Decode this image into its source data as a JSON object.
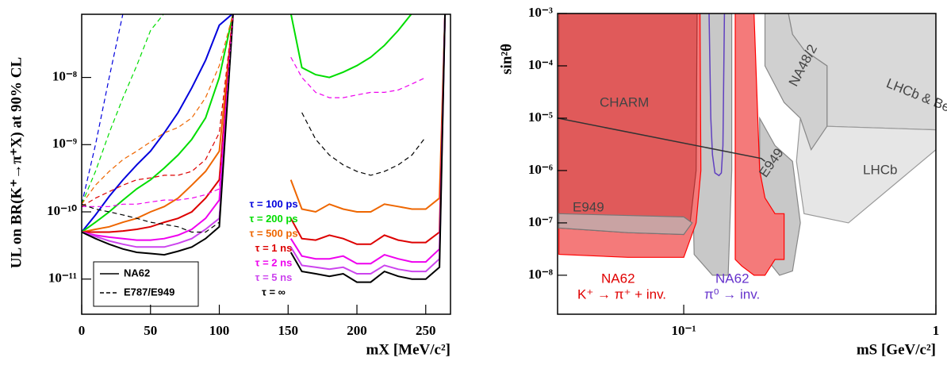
{
  "chart_data": [
    {
      "type": "line",
      "xlog": false,
      "ylog": true,
      "xlabel": "mX [MeV/c²]",
      "ylabel": "UL on BR(K⁺→π⁺X) at 90% CL",
      "xlim": [
        0,
        268
      ],
      "ylim": [
        3e-12,
        8.7e-08
      ],
      "xticks": [
        0,
        50,
        100,
        150,
        200,
        250
      ],
      "yticks": [
        {
          "value": 1e-11,
          "label": "10⁻¹¹"
        },
        {
          "value": 1e-10,
          "label": "10⁻¹⁰"
        },
        {
          "value": 1e-09,
          "label": "10⁻⁹"
        },
        {
          "value": 1e-08,
          "label": "10⁻⁸"
        }
      ],
      "legend": [
        {
          "label": "NA62",
          "dash": "solid"
        },
        {
          "label": "E787/E949",
          "dash": "dashed"
        }
      ],
      "x": [
        0,
        10,
        20,
        30,
        40,
        50,
        60,
        70,
        80,
        90,
        100,
        110,
        130,
        152,
        160,
        170,
        180,
        190,
        200,
        210,
        220,
        230,
        240,
        250,
        260,
        264
      ],
      "series": [
        {
          "name": "τ = 100 ps",
          "color": "#0000dd",
          "dash": "solid",
          "values": [
            5e-11,
            9e-11,
            1.7e-10,
            3e-10,
            5e-10,
            8e-10,
            1.5e-09,
            3e-09,
            7e-09,
            1.8e-08,
            6e-08,
            9e-08,
            null,
            null,
            null,
            null,
            null,
            null,
            null,
            null,
            null,
            null,
            null,
            null,
            null,
            null
          ]
        },
        {
          "name": "τ = 200 ps",
          "color": "#00dd00",
          "dash": "solid",
          "values": [
            5e-11,
            7e-11,
            1e-10,
            1.5e-10,
            2.2e-10,
            3e-10,
            4.5e-10,
            7e-10,
            1.2e-09,
            2.5e-09,
            1e-08,
            9e-08,
            null,
            9e-08,
            1.4e-08,
            1.1e-08,
            1e-08,
            1.2e-08,
            1.5e-08,
            2e-08,
            3e-08,
            5e-08,
            9e-08,
            9e-08,
            9e-08,
            9e-08
          ]
        },
        {
          "name": "τ = 500 ps",
          "color": "#ee6600",
          "dash": "solid",
          "values": [
            5e-11,
            5.5e-11,
            6e-11,
            7e-11,
            8e-11,
            1e-10,
            1.2e-10,
            1.6e-10,
            2.5e-10,
            4e-10,
            8e-10,
            9e-08,
            null,
            3e-10,
            1.1e-10,
            1e-10,
            1.3e-10,
            1.1e-10,
            1e-10,
            1e-10,
            1.3e-10,
            1.2e-10,
            1.1e-10,
            1.1e-10,
            1.6e-10,
            9e-08
          ]
        },
        {
          "name": "τ = 1 ns",
          "color": "#dd0000",
          "dash": "solid",
          "values": [
            5e-11,
            5e-11,
            5e-11,
            5.2e-11,
            5.5e-11,
            6e-11,
            7e-11,
            8e-11,
            1e-10,
            1.6e-10,
            3e-10,
            9e-08,
            null,
            8e-11,
            4e-11,
            3.8e-11,
            4.5e-11,
            4e-11,
            3.3e-11,
            3.3e-11,
            4.5e-11,
            3.8e-11,
            3.5e-11,
            3.5e-11,
            5e-11,
            9e-08
          ]
        },
        {
          "name": "τ = 2 ns",
          "color": "#ee00ee",
          "dash": "solid",
          "values": [
            5e-11,
            4.5e-11,
            4.2e-11,
            4e-11,
            3.8e-11,
            3.8e-11,
            4e-11,
            4.5e-11,
            5.5e-11,
            8e-11,
            1.5e-10,
            9e-08,
            null,
            4e-11,
            2.2e-11,
            2e-11,
            2e-11,
            2.2e-11,
            1.7e-11,
            1.7e-11,
            2.3e-11,
            2e-11,
            1.8e-11,
            1.8e-11,
            2.8e-11,
            9e-08
          ]
        },
        {
          "name": "τ = 5 ns",
          "color": "#cc44ee",
          "dash": "solid",
          "values": [
            5e-11,
            4.3e-11,
            3.7e-11,
            3.3e-11,
            3e-11,
            3e-11,
            3e-11,
            3.4e-11,
            4e-11,
            5.5e-11,
            8e-11,
            9e-08,
            null,
            3e-11,
            1.6e-11,
            1.5e-11,
            1.4e-11,
            1.5e-11,
            1.2e-11,
            1.2e-11,
            1.6e-11,
            1.4e-11,
            1.3e-11,
            1.3e-11,
            2e-11,
            9e-08
          ]
        },
        {
          "name": "τ = ∞",
          "color": "#000000",
          "dash": "solid",
          "values": [
            5e-11,
            4e-11,
            3.3e-11,
            2.8e-11,
            2.5e-11,
            2.4e-11,
            2.3e-11,
            2.6e-11,
            3e-11,
            4e-11,
            6e-11,
            9e-08,
            null,
            2.5e-11,
            1.3e-11,
            1.2e-11,
            1.1e-11,
            1.2e-11,
            9e-12,
            9e-12,
            1.3e-11,
            1.1e-11,
            1e-11,
            1e-11,
            1.5e-11,
            9e-08
          ]
        },
        {
          "color": "#0000dd",
          "dash": "dashed",
          "values": [
            1.3e-10,
            1e-09,
            1e-08,
            9e-08,
            null,
            null,
            null,
            null,
            null,
            null,
            null,
            null,
            null,
            null,
            null,
            null,
            null,
            null,
            null,
            null,
            null,
            null,
            null,
            null,
            null,
            null
          ]
        },
        {
          "color": "#00dd00",
          "dash": "dashed",
          "values": [
            1.3e-10,
            4e-10,
            1.5e-09,
            5e-09,
            1.5e-08,
            5e-08,
            9e-08,
            null,
            null,
            null,
            null,
            null,
            null,
            null,
            null,
            null,
            null,
            null,
            null,
            null,
            null,
            null,
            null,
            null,
            null,
            null
          ]
        },
        {
          "color": "#ee6600",
          "dash": "dashed",
          "values": [
            1.3e-10,
            2.5e-10,
            4e-10,
            6e-10,
            8e-10,
            1.1e-09,
            1.5e-09,
            1.8e-09,
            2.5e-09,
            5e-09,
            1.5e-08,
            9e-08,
            null,
            null,
            null,
            null,
            null,
            null,
            null,
            null,
            null,
            null,
            null,
            null,
            null,
            null
          ]
        },
        {
          "color": "#dd0000",
          "dash": "dashed",
          "values": [
            1.2e-10,
            1.6e-10,
            2e-10,
            2.5e-10,
            3e-10,
            3.2e-10,
            3.5e-10,
            3.5e-10,
            4e-10,
            6e-10,
            1.5e-09,
            9e-08,
            null,
            null,
            null,
            null,
            null,
            null,
            null,
            null,
            null,
            null,
            null,
            null,
            null,
            null
          ]
        },
        {
          "color": "#ee00ee",
          "dash": "dashed",
          "values": [
            1.2e-10,
            1.2e-10,
            1.2e-10,
            1.3e-10,
            1.3e-10,
            1.4e-10,
            1.5e-10,
            1.5e-10,
            1.6e-10,
            1.8e-10,
            2.2e-10,
            9e-08,
            null,
            2e-08,
            1e-08,
            6e-09,
            5e-09,
            5e-09,
            5.5e-09,
            6e-09,
            6e-09,
            6.5e-09,
            8e-09,
            1e-08,
            null,
            null
          ]
        },
        {
          "color": "#000000",
          "dash": "dashed",
          "values": [
            1.3e-10,
            1.1e-10,
            1e-10,
            9e-11,
            8e-11,
            7e-11,
            6.5e-11,
            6e-11,
            5e-11,
            5e-11,
            7e-11,
            9e-08,
            null,
            null,
            3e-09,
            1.2e-09,
            7e-10,
            5e-10,
            4e-10,
            3.5e-10,
            4e-10,
            5e-10,
            7e-10,
            1.3e-09,
            null,
            null
          ]
        }
      ]
    },
    {
      "type": "region",
      "xlog": true,
      "ylog": true,
      "xlabel": "mS [GeV/c²]",
      "ylabel": "sin²θ",
      "xlim": [
        0.0316,
        1
      ],
      "ylim": [
        1.8e-09,
        0.001
      ],
      "xticks": [
        {
          "value": 0.1,
          "label": "10⁻¹"
        },
        1
      ],
      "yticks": [
        {
          "value": 1e-08,
          "label": "10⁻⁸"
        },
        {
          "value": 1e-07,
          "label": "10⁻⁷"
        },
        {
          "value": 1e-06,
          "label": "10⁻⁶"
        },
        {
          "value": 1e-05,
          "label": "10⁻⁵"
        },
        {
          "value": 0.0001,
          "label": "10⁻⁴"
        },
        {
          "value": 0.001,
          "label": "10⁻³"
        }
      ],
      "regions": [
        {
          "color": "#d9d9d9",
          "stroke": "#888888",
          "x": [
            0.26,
            1,
            1,
            0.37,
            0.37,
            0.3,
            0.27
          ],
          "y": [
            0.001,
            0.001,
            6e-06,
            7e-06,
            0.0001,
            0.0002,
            0.0004
          ]
        },
        {
          "color": "#e6e6e6",
          "stroke": "#999999",
          "x": [
            0.29,
            0.37,
            1,
            1,
            0.45,
            0.3,
            0.28
          ],
          "y": [
            1e-05,
            7e-06,
            6e-06,
            2.5e-06,
            1e-07,
            1.5e-07,
            1.5e-06
          ]
        },
        {
          "color": "#d0d0d0",
          "stroke": "#888888",
          "x": [
            0.21,
            0.26,
            0.27,
            0.3,
            0.37,
            0.37,
            0.32,
            0.29,
            0.25,
            0.21
          ],
          "y": [
            0.001,
            0.001,
            0.0004,
            0.0002,
            0.0001,
            7e-06,
            2.5e-06,
            1e-05,
            2e-05,
            0.0001
          ]
        },
        {
          "color": "#c8c8c8",
          "stroke": "#888888",
          "x": [
            0.105,
            0.155,
            0.155,
            0.15,
            0.13,
            0.11
          ],
          "y": [
            0.001,
            0.001,
            1e-06,
            1e-08,
            1e-08,
            2.5e-08
          ]
        },
        {
          "color": "#c8c8c8",
          "stroke": "#888888",
          "x": [
            0.2,
            0.23,
            0.27,
            0.29,
            0.27,
            0.24,
            0.2
          ],
          "y": [
            1e-05,
            3e-06,
            1.5e-06,
            1e-07,
            1.2e-08,
            1e-08,
            3e-08
          ]
        },
        {
          "color": "#f47a7a",
          "stroke": "#ff0000",
          "x": [
            0.032,
            0.116,
            0.117,
            0.112,
            0.1,
            0.06,
            0.032
          ],
          "y": [
            0.001,
            0.001,
            1e-06,
            1e-07,
            2.2e-08,
            2.2e-08,
            2.5e-08
          ]
        },
        {
          "color": "#e05a5a",
          "stroke": "#aa3333",
          "x": [
            0.032,
            0.113,
            0.112,
            0.106,
            0.1,
            0.06,
            0.032
          ],
          "y": [
            0.001,
            0.001,
            1e-06,
            1e-07,
            6e-08,
            6.5e-08,
            8e-08
          ]
        },
        {
          "color": "#c9a3a3",
          "stroke": "#777777",
          "x": [
            0.032,
            0.1,
            0.108,
            0.1,
            0.06,
            0.032
          ],
          "y": [
            1.5e-07,
            1.3e-07,
            1e-07,
            6e-08,
            6.5e-08,
            8e-08
          ]
        },
        {
          "color": "#f47a7a",
          "stroke": "#ff0000",
          "x": [
            0.16,
            0.19,
            0.2,
            0.21,
            0.23,
            0.25,
            0.25,
            0.23,
            0.21,
            0.19,
            0.17,
            0.16
          ],
          "y": [
            0.001,
            0.001,
            1e-06,
            3e-07,
            1.5e-07,
            1.5e-07,
            2e-08,
            2e-08,
            1e-08,
            1e-08,
            1.5e-08,
            2e-08
          ]
        }
      ],
      "lines": [
        {
          "color": "#6040c0",
          "x": [
            0.126,
            0.128,
            0.13,
            0.133,
            0.138,
            0.141,
            0.143,
            0.145
          ],
          "y": [
            0.001,
            1e-05,
            2e-06,
            9e-07,
            8e-07,
            9e-07,
            3e-06,
            0.001
          ]
        },
        {
          "color": "#333333",
          "x": [
            0.0316,
            0.203,
            0.21
          ],
          "y": [
            1e-05,
            1.7e-06,
            1.5e-06
          ]
        }
      ],
      "annotations": [
        {
          "text": "CHARM",
          "color": "#444444"
        },
        {
          "text": "E949",
          "color": "#444444"
        },
        {
          "text": "E949",
          "color": "#444444"
        },
        {
          "text": "NA48/2",
          "color": "#444444"
        },
        {
          "text": "LHCb & Belle",
          "color": "#444444"
        },
        {
          "text": "LHCb",
          "color": "#444444"
        },
        {
          "text": "NA62",
          "color": "#e00000"
        },
        {
          "text": "K⁺ → π⁺ + inv.",
          "color": "#e00000"
        },
        {
          "text": "NA62",
          "color": "#6633cc"
        },
        {
          "text": "π⁰ → inv.",
          "color": "#6633cc"
        }
      ]
    }
  ]
}
